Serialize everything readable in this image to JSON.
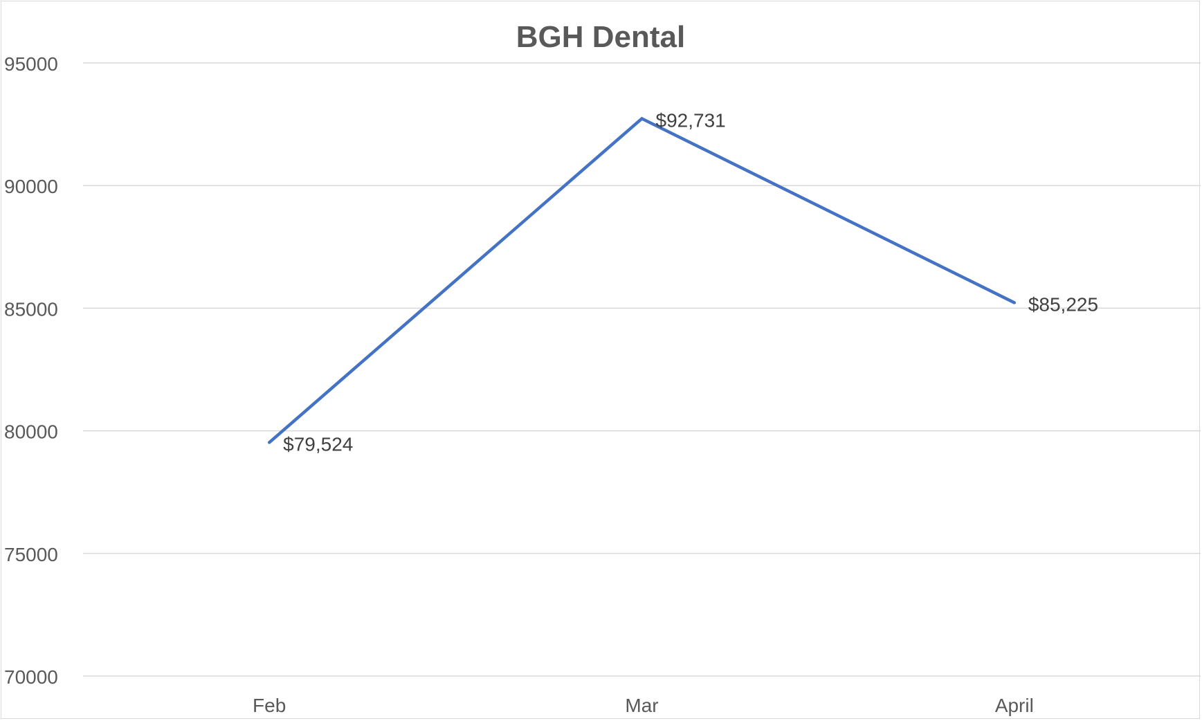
{
  "chart_data": {
    "type": "line",
    "title": "BGH Dental",
    "xlabel": "",
    "ylabel": "",
    "categories": [
      "Feb",
      "Mar",
      "April"
    ],
    "series": [
      {
        "values": [
          79524,
          92731,
          85225
        ],
        "labels": [
          "$79,524",
          "$92,731",
          "$85,225"
        ]
      }
    ],
    "ylim": [
      70000,
      95000
    ],
    "yticks": [
      70000,
      75000,
      80000,
      85000,
      90000,
      95000
    ],
    "ytick_labels": [
      "70000",
      "75000",
      "80000",
      "85000",
      "90000",
      "95000"
    ],
    "grid": true,
    "legend": "none",
    "line_color": "#4472c4"
  }
}
